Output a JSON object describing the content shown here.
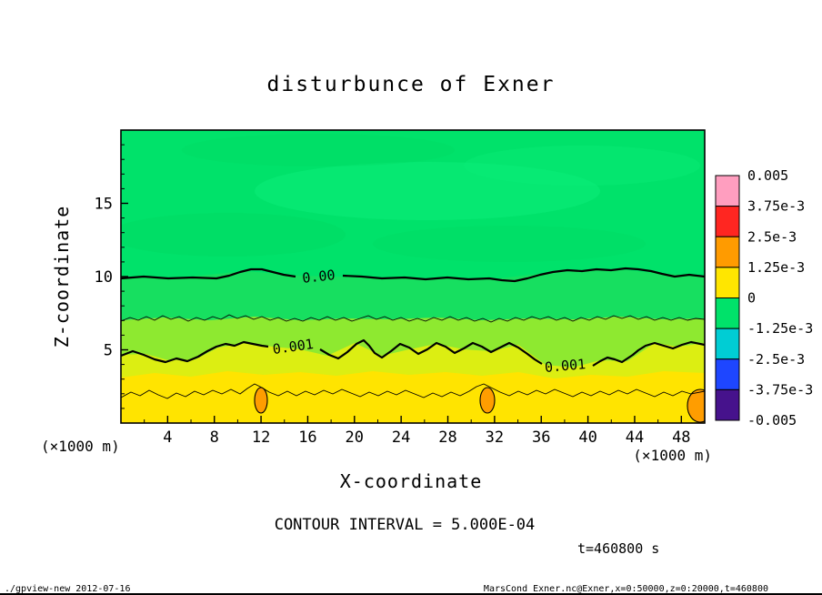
{
  "title": "disturbunce of Exner",
  "axes": {
    "x_label": "X-coordinate",
    "y_label": "Z-coordinate",
    "x_unit_left": "(×1000 m)",
    "x_unit_right": "(×1000 m)"
  },
  "annotations": {
    "contour_interval": "CONTOUR INTERVAL = 5.000E-04",
    "time": "t=460800 s"
  },
  "footer": {
    "left": "./gpview-new  2012-07-16",
    "right": "MarsCond_Exner.nc@Exner,x=0:50000,z=0:20000,t=460800"
  },
  "colorbar": {
    "labels": [
      "0.005",
      "3.75e-3",
      "2.5e-3",
      "1.25e-3",
      "0",
      "-1.25e-3",
      "-2.5e-3",
      "-3.75e-3",
      "-0.005"
    ],
    "colors_top_to_bottom": [
      "#ff9ebf",
      "#ff2621",
      "#ff9b00",
      "#ffe600",
      "#00e26a",
      "#00cdd4",
      "#1e46ff",
      "#46128c"
    ]
  },
  "palette": {
    "background_green": "#00e26a",
    "band_light_green": "#17df60",
    "band_yellow_green": "#8ee930",
    "band_chartreuse": "#dcee12",
    "band_yellow": "#ffe400",
    "blob_orange": "#ff9d00",
    "mottle_green_light": "#0bed79",
    "mottle_green_dark": "#00d65f"
  },
  "contour_line_labels": [
    "0.00",
    "0.001",
    "0.001"
  ],
  "chart_data": {
    "type": "heatmap",
    "subtype": "filled_contour",
    "field": "disturbance of Exner function",
    "title": "disturbunce of Exner",
    "x": {
      "label": "X-coordinate",
      "units": "×1000 m",
      "range": [
        0,
        50
      ],
      "tick_values": [
        4,
        8,
        12,
        16,
        20,
        24,
        28,
        32,
        36,
        40,
        44,
        48
      ],
      "minor_step": 2
    },
    "y": {
      "label": "Z-coordinate",
      "units": "×1000 m",
      "range": [
        0,
        20
      ],
      "tick_values": [
        5,
        10,
        15
      ],
      "minor_step": 1
    },
    "contour_interval": 0.0005,
    "colorbar_levels": [
      0.005,
      0.00375,
      0.0025,
      0.00125,
      0,
      -0.00125,
      -0.0025,
      -0.00375,
      -0.005
    ],
    "contour_lines": [
      {
        "level": 0.0,
        "style": "thick",
        "labeled": true,
        "approx_z": 10
      },
      {
        "level": 0.0005,
        "style": "thin",
        "labeled": false,
        "approx_z": 7
      },
      {
        "level": 0.001,
        "style": "thick",
        "labeled": true,
        "approx_z": 5
      },
      {
        "level": 0.0015,
        "style": "thin",
        "labeled": false,
        "approx_z": 2
      }
    ],
    "maxima": [
      {
        "x": 12,
        "z": 1.5,
        "value": "≥0.0015"
      },
      {
        "x": 31.5,
        "z": 1.5,
        "value": "≥0.0015"
      },
      {
        "x": 49,
        "z": 1,
        "value": "≥0.0015"
      }
    ],
    "time_seconds": 460800,
    "legend_position": "right",
    "grid": false
  }
}
